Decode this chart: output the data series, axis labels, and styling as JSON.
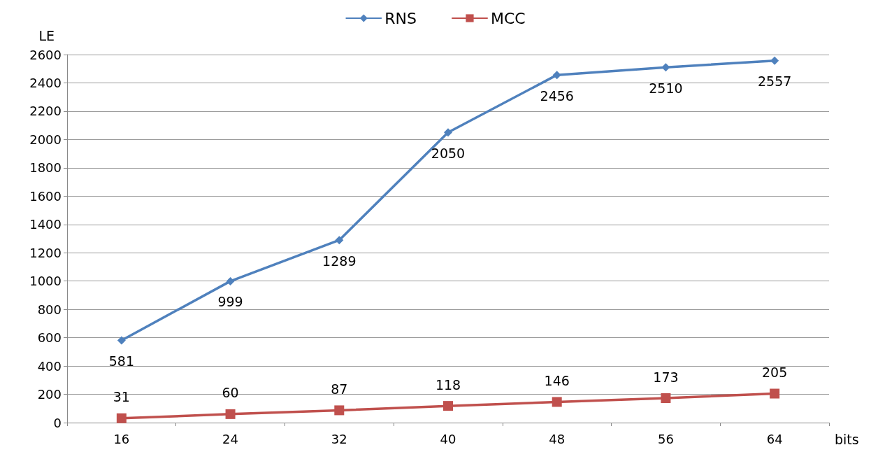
{
  "chart_data": {
    "type": "line",
    "xlabel": "bits",
    "ylabel": "LE",
    "categories": [
      "16",
      "24",
      "32",
      "40",
      "48",
      "56",
      "64"
    ],
    "series": [
      {
        "name": "RNS",
        "color": "#4f81bd",
        "marker": "diamond",
        "values": [
          581,
          999,
          1289,
          2050,
          2456,
          2510,
          2557
        ]
      },
      {
        "name": "MCC",
        "color": "#c0504d",
        "marker": "square",
        "values": [
          31,
          60,
          87,
          118,
          146,
          173,
          205
        ]
      }
    ],
    "ylim": [
      0,
      2600
    ],
    "yticks": [
      0,
      200,
      400,
      600,
      800,
      1000,
      1200,
      1400,
      1600,
      1800,
      2000,
      2200,
      2400,
      2600
    ],
    "grid": "y",
    "legend": "top",
    "data_labels": true,
    "line_style": "solid"
  }
}
